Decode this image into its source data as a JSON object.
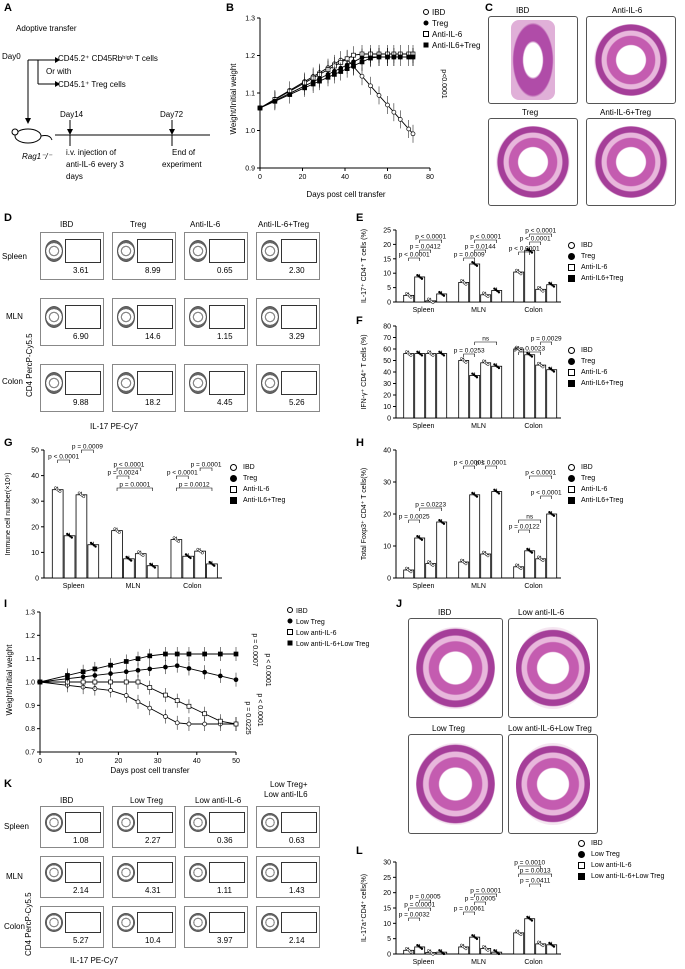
{
  "panel_letters": [
    "A",
    "B",
    "C",
    "D",
    "E",
    "F",
    "G",
    "H",
    "I",
    "J",
    "K",
    "L"
  ],
  "schema": {
    "title": "Adoptive transfer",
    "day0": "Day0",
    "cells1": "CD45.2⁺ CD45Rbʰⁱᵍʰ T cells",
    "orwith": "Or with",
    "cells2": "CD45.1⁺ Treg cells",
    "day14": "Day14",
    "day72": "Day72",
    "mouse": "Rag1⁻/⁻",
    "inj1": "i.v. injection of",
    "inj2": "anti-IL-6 every 3",
    "inj3": "days",
    "end1": "End of",
    "end2": "experiment"
  },
  "chart_B": {
    "type": "line",
    "ylabel": "Weight/Initial weight",
    "xlabel": "Days post cell transfer",
    "xticks": [
      "0",
      "20",
      "40",
      "60",
      "80"
    ],
    "yticks": [
      "0.9",
      "1.0",
      "1.1",
      "1.2",
      "1.3"
    ],
    "legend": [
      "IBD",
      "Treg",
      "Anti-IL-6",
      "Anti-IL6+Treg"
    ],
    "pvalue": "p<0.0001"
  },
  "panel_C": {
    "labels": [
      "IBD",
      "Anti-IL-6",
      "Treg",
      "Anti-IL-6+Treg"
    ]
  },
  "panel_D": {
    "cols": [
      "IBD",
      "Treg",
      "Anti-IL-6",
      "Anti-IL-6+Treg"
    ],
    "rows": [
      "Spleen",
      "MLN",
      "Colon"
    ],
    "values": [
      [
        "3.61",
        "8.99",
        "0.65",
        "2.30"
      ],
      [
        "6.90",
        "14.6",
        "1.15",
        "3.29"
      ],
      [
        "9.88",
        "18.2",
        "4.45",
        "5.26"
      ]
    ],
    "ylabel": "CD4 PercP-Cy5.5",
    "xlabel": "IL-17 PE-Cy7"
  },
  "legend4": [
    "IBD",
    "Treg",
    "Anti-IL-6",
    "Anti-IL6+Treg"
  ],
  "chart_E": {
    "type": "bar",
    "ylabel": "IL-17⁺ CD4⁺ T cells (%)",
    "yticks": [
      "0",
      "5",
      "10",
      "15",
      "20",
      "25"
    ],
    "categories": [
      "Spleen",
      "MLN",
      "Colon"
    ],
    "pvals": [
      "p < 0.0001",
      "p = 0.0412",
      "p < 0.0001",
      "p = 0.0009",
      "p = 0.0144",
      "p < 0.0001",
      "p < 0.0001",
      "p < 0.0001",
      "p < 0.0001"
    ]
  },
  "chart_F": {
    "type": "bar",
    "ylabel": "IFN-γ⁺ CD4⁺ T cells (%)",
    "yticks": [
      "0",
      "10",
      "20",
      "30",
      "40",
      "50",
      "60",
      "70",
      "80"
    ],
    "categories": [
      "Spleen",
      "MLN",
      "Colon"
    ],
    "pvals": [
      "p = 0.0253",
      "ns",
      "p = 0.0023",
      "p = 0.0029"
    ]
  },
  "chart_G": {
    "type": "bar",
    "ylabel": "Immune cell number(×10⁶)",
    "yticks": [
      "0",
      "10",
      "20",
      "30",
      "40",
      "50"
    ],
    "categories": [
      "Spleen",
      "MLN",
      "Colon"
    ],
    "pvals": [
      "p < 0.0001",
      "p = 0.0009",
      "p = 0.0001",
      "p = 0.0024",
      "p < 0.0001",
      "p = 0.0012",
      "p < 0.0001",
      "p = 0.0001"
    ]
  },
  "chart_H": {
    "type": "bar",
    "ylabel": "Total Foxp3⁺ CD4⁺ T cells(%)",
    "yticks": [
      "0",
      "10",
      "20",
      "30",
      "40"
    ],
    "categories": [
      "Spleen",
      "MLN",
      "Colon"
    ],
    "pvals": [
      "p = 0.0025",
      "p = 0.0223",
      "p < 0.0001",
      "p < 0.0001",
      "p < 0.0001",
      "ns",
      "p = 0.0122",
      "p < 0.0001"
    ]
  },
  "chart_I": {
    "type": "line",
    "ylabel": "Weight/Initial weight",
    "xlabel": "Days post cell transfer",
    "xticks": [
      "0",
      "10",
      "20",
      "30",
      "40",
      "50"
    ],
    "yticks": [
      "0.7",
      "0.8",
      "0.9",
      "1.0",
      "1.1",
      "1.2",
      "1.3"
    ],
    "legend": [
      "IBD",
      "Low Treg",
      "Low anti-IL-6",
      "Low anti-IL-6+Low Treg"
    ],
    "pvals": [
      "p = 0.0007",
      "p < 0.0001",
      "p < 0.0001",
      "p = 0.0225"
    ]
  },
  "panel_J": {
    "labels": [
      "IBD",
      "Low anti-IL-6",
      "Low Treg",
      "Low anti-IL-6+Low Treg"
    ]
  },
  "panel_K": {
    "cols": [
      "IBD",
      "Low Treg",
      "Low anti-IL-6",
      "Low Treg+\nLow anti-IL6"
    ],
    "col4a": "Low Treg+",
    "col4b": "Low anti-IL6",
    "rows": [
      "Spleen",
      "MLN",
      "Colon"
    ],
    "values": [
      [
        "1.08",
        "2.27",
        "0.36",
        "0.63"
      ],
      [
        "2.14",
        "4.31",
        "1.11",
        "1.43"
      ],
      [
        "5.27",
        "10.4",
        "3.97",
        "2.14"
      ]
    ],
    "ylabel": "CD4 PercP-Cy5.5",
    "xlabel": "IL-17 PE-Cy7"
  },
  "legend_L": [
    "IBD",
    "Low Treg",
    "Low anti-IL-6",
    "Low anti-IL-6+Low Treg"
  ],
  "chart_L": {
    "type": "bar",
    "ylabel": "IL-17a⁺CD4⁺ cells(%)",
    "yticks": [
      "0",
      "5",
      "10",
      "15",
      "20",
      "25",
      "30"
    ],
    "categories": [
      "Spleen",
      "MLN",
      "Colon"
    ],
    "pvals": [
      "p = 0.0005",
      "p = 0.0001",
      "p = 0.0032",
      "p = 0.0001",
      "p = 0.0005",
      "p = 0.0061",
      "p = 0.0010",
      "p = 0.0013",
      "p = 0.0411"
    ]
  },
  "bar_data": {
    "E": [
      [
        2.3,
        8.7,
        0.4,
        2.8
      ],
      [
        6.8,
        13.2,
        2.5,
        4.0
      ],
      [
        10.4,
        17.8,
        4.4,
        6.0
      ]
    ],
    "F": [
      [
        56,
        56,
        56,
        56
      ],
      [
        50,
        37,
        48,
        45
      ],
      [
        60,
        55,
        46,
        42
      ]
    ],
    "G": [
      [
        34.5,
        16.5,
        32.5,
        13
      ],
      [
        18.5,
        7.5,
        9.5,
        4.8
      ],
      [
        15,
        8.5,
        10.5,
        5.5
      ]
    ],
    "H": [
      [
        2.5,
        12.5,
        4.5,
        17.5
      ],
      [
        5,
        26,
        7.5,
        27
      ],
      [
        3.5,
        8.5,
        6,
        20
      ]
    ],
    "L": [
      [
        1.2,
        2.3,
        0.5,
        0.6
      ],
      [
        2.3,
        5.5,
        1.8,
        0.6
      ],
      [
        6.9,
        11.5,
        3.3,
        3.0
      ]
    ]
  }
}
